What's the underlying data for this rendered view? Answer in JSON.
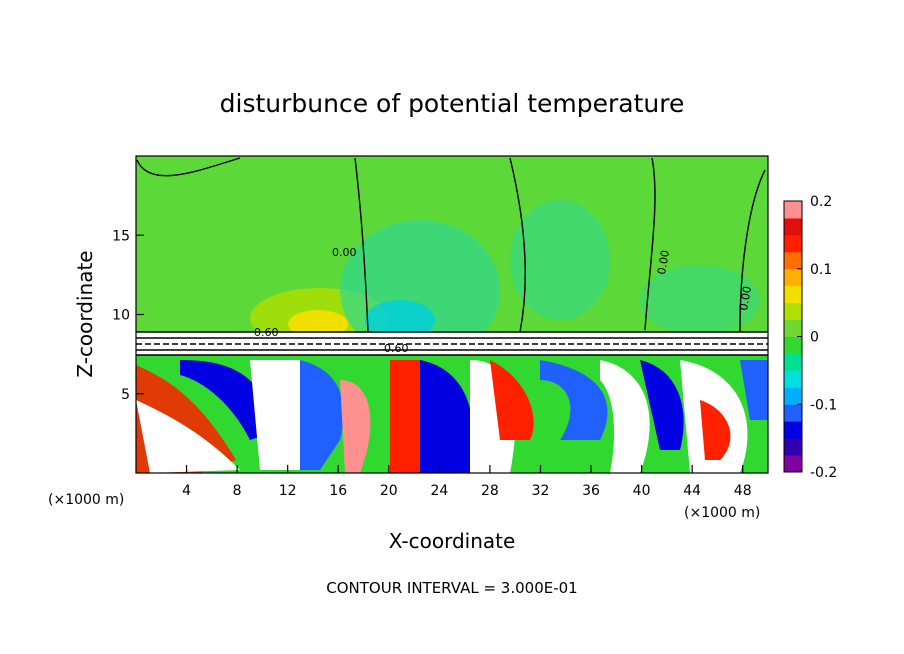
{
  "chart_data": {
    "type": "heatmap",
    "title": "disturbunce of potential temperature",
    "xlabel": "X-coordinate",
    "ylabel": "Z-coordinate",
    "x_unit_label_left": "(×1000 m)",
    "x_unit_label_right": "(×1000 m)",
    "xlim": [
      0,
      50
    ],
    "ylim": [
      0,
      20
    ],
    "x_ticks": [
      4,
      8,
      12,
      16,
      20,
      24,
      28,
      32,
      36,
      40,
      44,
      48
    ],
    "y_ticks": [
      5,
      10,
      15
    ],
    "colorbar": {
      "range": [
        -0.2,
        0.2
      ],
      "ticks": [
        "0.2",
        "0.1",
        "0",
        "-0.1",
        "-0.2"
      ],
      "colors": [
        "#8000a0",
        "#3000b0",
        "#0000e0",
        "#2060ff",
        "#00b0ff",
        "#00e0e0",
        "#00e090",
        "#30d830",
        "#70d830",
        "#b0e000",
        "#f0e000",
        "#ffb000",
        "#ff7000",
        "#ff2000",
        "#e01010",
        "#ff9090"
      ]
    },
    "contour_labels": [
      "0.00",
      "0.60",
      "0.60",
      "0.00",
      "0.00"
    ],
    "footer": "CONTOUR INTERVAL = 3.000E-01"
  }
}
